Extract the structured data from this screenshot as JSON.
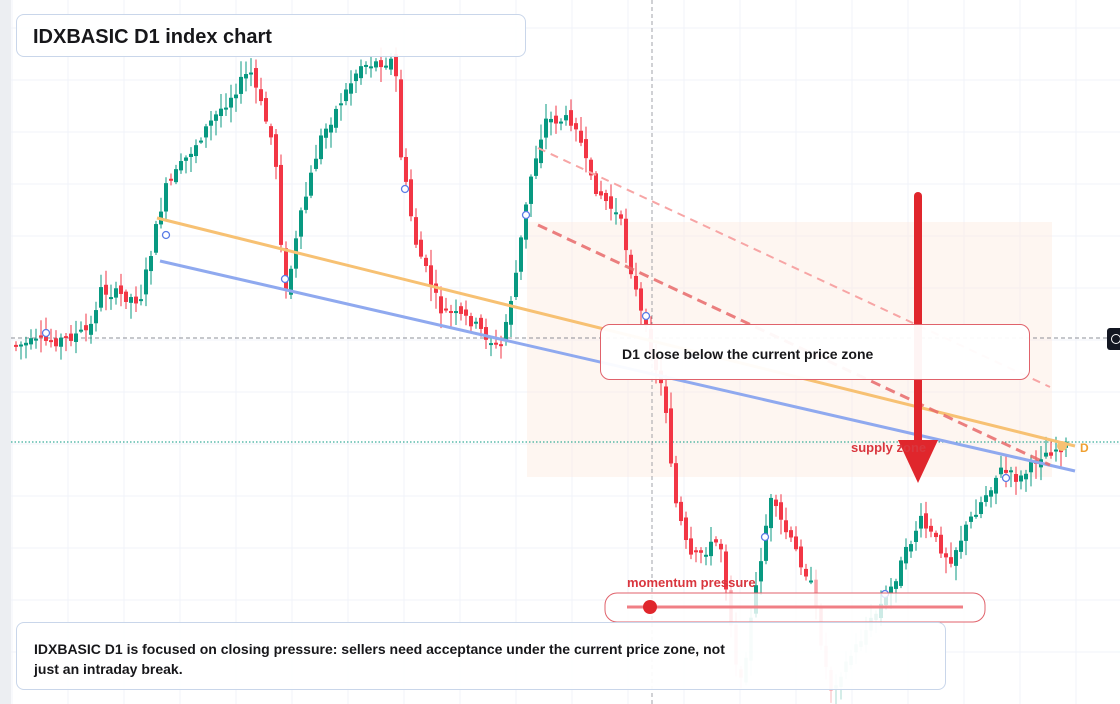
{
  "title": "IDXBASIC D1 index chart",
  "callout": "D1 close below the current price zone",
  "note": "IDXBASIC D1 is focused on closing pressure: sellers need acceptance under the current price zone, not just an intraday break.",
  "labels": {
    "momentum": "momentum pressure",
    "supply": "supply zone",
    "marker": "D"
  },
  "colors": {
    "bull": "#089981",
    "bear": "#f23645",
    "orange_trendline": "#f7c173",
    "blue_trendline": "#8fa9ef",
    "arrow": "#e0262c",
    "accent_text": "#d9363e"
  },
  "icons": {
    "crosshair": "crosshair-plus-icon",
    "arrow": "down-arrow-icon",
    "pivot": "pivot-circle-icon"
  }
}
